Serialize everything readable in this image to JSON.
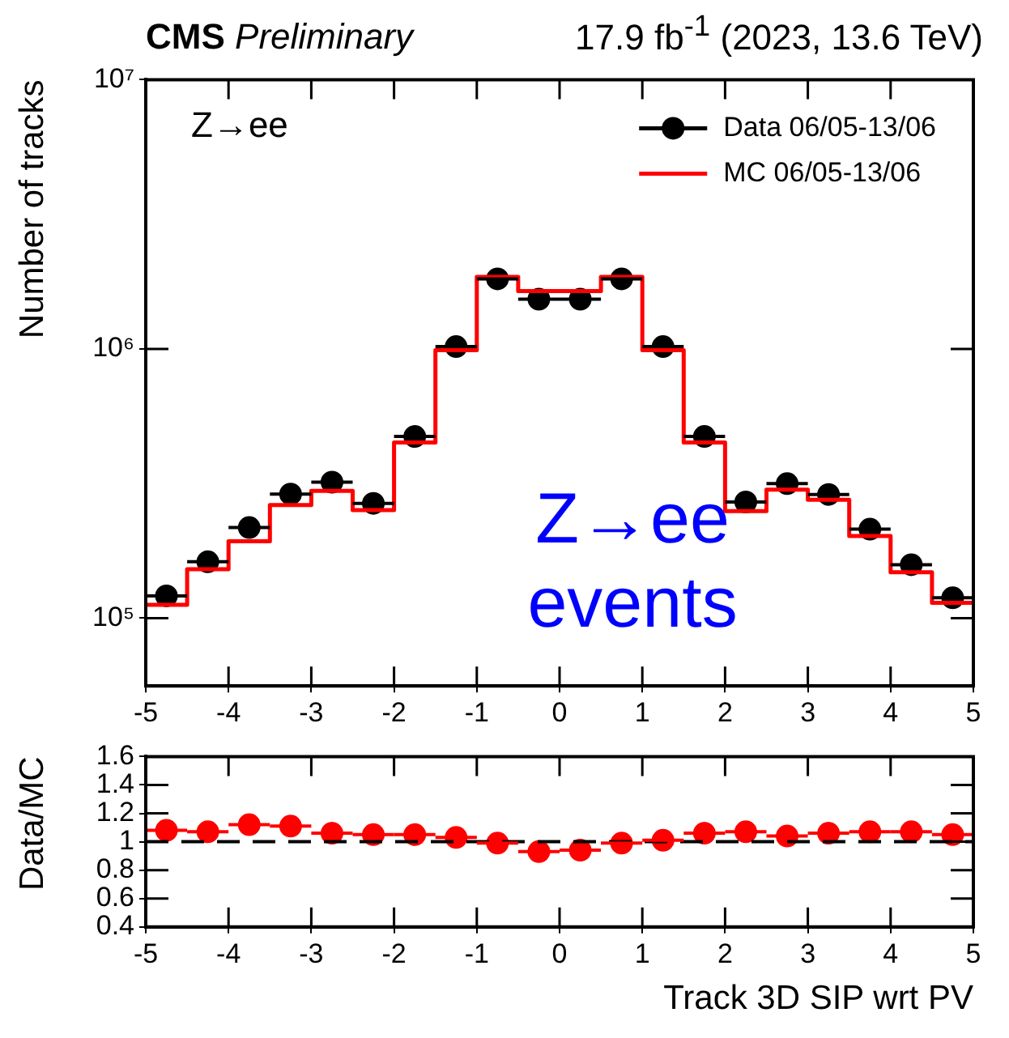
{
  "chart_data": [
    {
      "type": "scatter",
      "title": "CMS Preliminary",
      "subtitle": "17.9 fb$^{-1}$ (2023, 13.6 TeV)",
      "ylabel": "Number of tracks",
      "annotations": [
        "Z→ee",
        "Z→ee events"
      ],
      "x": [
        -4.75,
        -4.25,
        -3.75,
        -3.25,
        -2.75,
        -2.25,
        -1.75,
        -1.25,
        -0.75,
        -0.25,
        0.25,
        0.75,
        1.25,
        1.75,
        2.25,
        2.75,
        3.25,
        3.75,
        4.25,
        4.75
      ],
      "series": [
        {
          "name": "Data 06/05-13/06",
          "type": "scatter",
          "color": "#000000",
          "values": [
            121000,
            162000,
            217000,
            289000,
            320000,
            267000,
            473000,
            1020000,
            1820000,
            1530000,
            1530000,
            1820000,
            1020000,
            473000,
            270000,
            316000,
            288000,
            214000,
            158000,
            119000
          ],
          "xerrors": [
            0.25,
            0.25,
            0.25,
            0.25,
            0.25,
            0.25,
            0.25,
            0.25,
            0.25,
            0.25,
            0.25,
            0.25,
            0.25,
            0.25,
            0.25,
            0.25,
            0.25,
            0.25,
            0.25,
            0.25
          ]
        },
        {
          "name": "MC 06/05-13/06",
          "type": "histogram",
          "color": "#ff0000",
          "bins": [
            -5,
            -4.5,
            -4,
            -3.5,
            -3,
            -2.5,
            -2,
            -1.5,
            -1,
            -0.5,
            0,
            0.5,
            1,
            1.5,
            2,
            2.5,
            3,
            3.5,
            4,
            4.5,
            5
          ],
          "values": [
            112000,
            152000,
            193000,
            263000,
            297000,
            252000,
            449000,
            990000,
            1850000,
            1640000,
            1640000,
            1850000,
            990000,
            449000,
            250000,
            300000,
            275000,
            202000,
            148000,
            114000
          ]
        }
      ],
      "xlim": [
        -5,
        5
      ],
      "xticks": [
        -5,
        -4,
        -3,
        -2,
        -1,
        0,
        1,
        2,
        3,
        4,
        5
      ],
      "ylim": [
        56000,
        10000000
      ],
      "yticks": [
        {
          "value": 100000,
          "label": "10⁵"
        },
        {
          "value": 1000000,
          "label": "10⁶"
        },
        {
          "value": 10000000,
          "label": "10⁷"
        }
      ],
      "log": "y",
      "legend": "top right",
      "marker": "circle",
      "grid": false
    },
    {
      "type": "scatter",
      "xlabel": "Track 3D SIP wrt PV",
      "ylabel": "Data/MC",
      "x": [
        -4.75,
        -4.25,
        -3.75,
        -3.25,
        -2.75,
        -2.25,
        -1.75,
        -1.25,
        -0.75,
        -0.25,
        0.25,
        0.75,
        1.25,
        1.75,
        2.25,
        2.75,
        3.25,
        3.75,
        4.25,
        4.75
      ],
      "series": [
        {
          "type": "scatter",
          "color": "#ff0000",
          "values": [
            1.08,
            1.07,
            1.12,
            1.11,
            1.06,
            1.05,
            1.05,
            1.03,
            0.99,
            0.93,
            0.94,
            0.99,
            1.01,
            1.06,
            1.07,
            1.04,
            1.06,
            1.07,
            1.07,
            1.05
          ],
          "xerrors": [
            0.25,
            0.25,
            0.25,
            0.25,
            0.25,
            0.25,
            0.25,
            0.25,
            0.25,
            0.25,
            0.25,
            0.25,
            0.25,
            0.25,
            0.25,
            0.25,
            0.25,
            0.25,
            0.25,
            0.25
          ]
        }
      ],
      "xlim": [
        -5,
        5
      ],
      "xticks": [
        -5,
        -4,
        -3,
        -2,
        -1,
        0,
        1,
        2,
        3,
        4,
        5
      ],
      "ylim": [
        0.4,
        1.6
      ],
      "yticks": [
        0.4,
        0.6,
        0.8,
        1,
        1.2,
        1.4,
        1.6
      ],
      "ref_lines": [
        {
          "axis": "y",
          "value": 1,
          "color": "#000000",
          "line_style": "dashed"
        }
      ],
      "marker": "circle",
      "grid": false
    }
  ]
}
